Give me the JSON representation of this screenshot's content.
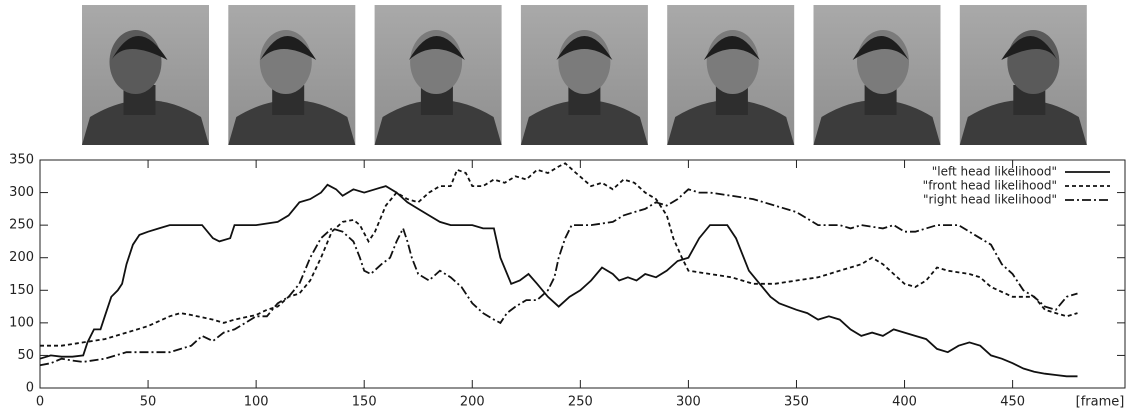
{
  "chart_data": {
    "type": "line",
    "xlabel": "[frame]",
    "xlim": [
      0,
      502
    ],
    "xticks": [
      0,
      50,
      100,
      150,
      200,
      250,
      300,
      350,
      400,
      450
    ],
    "ylim": [
      0,
      350
    ],
    "yticks": [
      0,
      50,
      100,
      150,
      200,
      250,
      300,
      350
    ],
    "legend": "upper right",
    "series": [
      {
        "name": "\"left head likelihood\"",
        "color": "#111111",
        "dash": "solid",
        "x": [
          0,
          5,
          10,
          15,
          20,
          22,
          25,
          28,
          30,
          33,
          36,
          38,
          40,
          43,
          46,
          50,
          55,
          60,
          70,
          75,
          80,
          83,
          88,
          90,
          100,
          110,
          115,
          120,
          125,
          130,
          133,
          137,
          140,
          145,
          150,
          155,
          160,
          165,
          170,
          175,
          180,
          185,
          190,
          200,
          205,
          210,
          213,
          218,
          222,
          226,
          230,
          235,
          240,
          245,
          250,
          255,
          260,
          265,
          268,
          272,
          276,
          280,
          285,
          290,
          295,
          300,
          305,
          310,
          318,
          322,
          328,
          333,
          338,
          342,
          350,
          355,
          360,
          365,
          370,
          375,
          380,
          385,
          390,
          395,
          400,
          405,
          410,
          415,
          420,
          425,
          430,
          435,
          440,
          445,
          450,
          455,
          460,
          465,
          470,
          475,
          480
        ],
        "values": [
          45,
          50,
          48,
          48,
          50,
          70,
          90,
          90,
          110,
          140,
          150,
          160,
          190,
          220,
          235,
          240,
          245,
          250,
          250,
          250,
          230,
          225,
          230,
          250,
          250,
          255,
          265,
          285,
          290,
          300,
          312,
          305,
          295,
          305,
          300,
          305,
          310,
          300,
          285,
          275,
          265,
          255,
          250,
          250,
          245,
          245,
          200,
          160,
          165,
          175,
          160,
          140,
          125,
          140,
          150,
          165,
          185,
          175,
          165,
          170,
          165,
          175,
          170,
          180,
          195,
          200,
          230,
          250,
          250,
          230,
          180,
          160,
          140,
          130,
          120,
          115,
          105,
          110,
          105,
          90,
          80,
          85,
          80,
          90,
          85,
          80,
          75,
          60,
          55,
          65,
          70,
          65,
          50,
          45,
          38,
          30,
          25,
          22,
          20,
          18,
          18
        ]
      },
      {
        "name": "\"front head likelihood\"",
        "color": "#111111",
        "dash": "dashed",
        "x": [
          0,
          10,
          20,
          30,
          40,
          50,
          60,
          65,
          70,
          80,
          85,
          90,
          100,
          105,
          110,
          115,
          120,
          125,
          130,
          135,
          140,
          145,
          148,
          152,
          155,
          160,
          165,
          170,
          175,
          180,
          185,
          190,
          193,
          197,
          200,
          205,
          210,
          215,
          220,
          225,
          230,
          235,
          240,
          243,
          248,
          255,
          260,
          265,
          270,
          275,
          280,
          285,
          290,
          293,
          297,
          300,
          310,
          320,
          330,
          340,
          350,
          360,
          370,
          380,
          385,
          390,
          395,
          400,
          405,
          410,
          415,
          420,
          430,
          435,
          440,
          450,
          460,
          465,
          470,
          475,
          480
        ],
        "values": [
          65,
          65,
          70,
          75,
          85,
          95,
          110,
          115,
          112,
          105,
          100,
          105,
          112,
          120,
          125,
          140,
          145,
          165,
          200,
          240,
          255,
          258,
          250,
          225,
          240,
          280,
          300,
          290,
          285,
          300,
          310,
          310,
          335,
          330,
          310,
          310,
          320,
          315,
          325,
          320,
          335,
          330,
          340,
          345,
          330,
          310,
          315,
          305,
          320,
          315,
          300,
          290,
          265,
          230,
          200,
          180,
          175,
          170,
          160,
          160,
          165,
          170,
          180,
          190,
          200,
          190,
          175,
          160,
          155,
          165,
          185,
          180,
          175,
          170,
          155,
          140,
          140,
          120,
          115,
          110,
          115
        ]
      },
      {
        "name": "\"right head likelihood\"",
        "color": "#111111",
        "dash": "dashdot",
        "x": [
          0,
          5,
          10,
          15,
          20,
          30,
          40,
          50,
          60,
          70,
          75,
          80,
          85,
          90,
          95,
          100,
          105,
          110,
          115,
          120,
          125,
          130,
          135,
          140,
          145,
          148,
          150,
          153,
          158,
          162,
          165,
          168,
          170,
          172,
          175,
          180,
          185,
          190,
          195,
          200,
          205,
          210,
          213,
          216,
          220,
          225,
          230,
          235,
          238,
          240,
          243,
          246,
          255,
          265,
          270,
          275,
          280,
          285,
          290,
          295,
          300,
          305,
          310,
          320,
          330,
          340,
          350,
          360,
          370,
          375,
          380,
          390,
          395,
          400,
          405,
          410,
          415,
          420,
          425,
          430,
          435,
          440,
          445,
          450,
          455,
          460,
          465,
          470,
          475,
          480
        ],
        "values": [
          35,
          38,
          45,
          42,
          40,
          45,
          55,
          55,
          55,
          65,
          80,
          72,
          85,
          90,
          100,
          110,
          110,
          130,
          140,
          160,
          200,
          230,
          245,
          240,
          225,
          200,
          180,
          175,
          190,
          200,
          225,
          245,
          225,
          200,
          175,
          165,
          180,
          170,
          155,
          130,
          115,
          105,
          100,
          115,
          125,
          135,
          135,
          150,
          170,
          200,
          230,
          250,
          250,
          255,
          265,
          270,
          275,
          285,
          280,
          290,
          305,
          300,
          300,
          295,
          290,
          280,
          270,
          250,
          250,
          245,
          250,
          245,
          250,
          240,
          240,
          245,
          250,
          250,
          250,
          240,
          230,
          220,
          190,
          175,
          150,
          140,
          125,
          120,
          140,
          145
        ]
      }
    ]
  }
}
